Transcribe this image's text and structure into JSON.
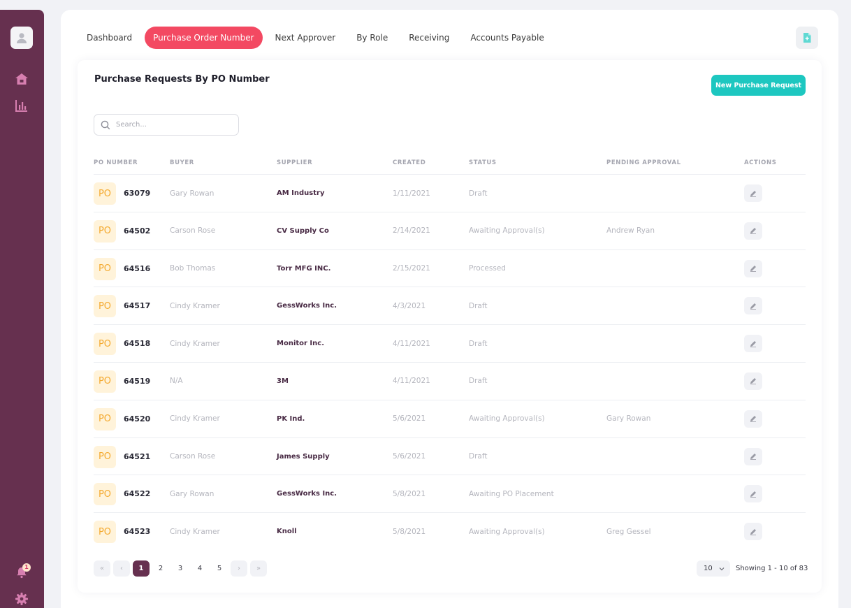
{
  "tabs": [
    {
      "label": "Dashboard",
      "active": false
    },
    {
      "label": "Purchase Order Number",
      "active": true
    },
    {
      "label": "Next Approver",
      "active": false
    },
    {
      "label": "By Role",
      "active": false
    },
    {
      "label": "Receiving",
      "active": false
    },
    {
      "label": "Accounts Payable",
      "active": false
    }
  ],
  "card": {
    "title": "Purchase Requests By PO Number",
    "new_button_label": "New Purchase Request"
  },
  "search": {
    "placeholder": "Search..."
  },
  "table": {
    "columns": [
      "PO NUMBER",
      "BUYER",
      "SUPPLIER",
      "CREATED",
      "STATUS",
      "PENDING APPROVAL",
      "ACTIONS"
    ],
    "badge_text": "PO",
    "rows": [
      {
        "po": "63079",
        "buyer": "Gary Rowan",
        "supplier": "AM Industry",
        "created": "1/11/2021",
        "status": "Draft",
        "pending": ""
      },
      {
        "po": "64502",
        "buyer": "Carson Rose",
        "supplier": "CV Supply Co",
        "created": "2/14/2021",
        "status": "Awaiting Approval(s)",
        "pending": "Andrew Ryan"
      },
      {
        "po": "64516",
        "buyer": "Bob Thomas",
        "supplier": "Torr MFG INC.",
        "created": "2/15/2021",
        "status": "Processed",
        "pending": ""
      },
      {
        "po": "64517",
        "buyer": "Cindy Kramer",
        "supplier": "GessWorks Inc.",
        "created": "4/3/2021",
        "status": "Draft",
        "pending": ""
      },
      {
        "po": "64518",
        "buyer": "Cindy Kramer",
        "supplier": "Monitor Inc.",
        "created": "4/11/2021",
        "status": "Draft",
        "pending": ""
      },
      {
        "po": "64519",
        "buyer": "N/A",
        "supplier": "3M",
        "created": "4/11/2021",
        "status": "Draft",
        "pending": ""
      },
      {
        "po": "64520",
        "buyer": "Cindy Kramer",
        "supplier": "PK Ind.",
        "created": "5/6/2021",
        "status": "Awaiting Approval(s)",
        "pending": "Gary Rowan"
      },
      {
        "po": "64521",
        "buyer": "Carson Rose",
        "supplier": "James Supply",
        "created": "5/6/2021",
        "status": "Draft",
        "pending": ""
      },
      {
        "po": "64522",
        "buyer": "Gary Rowan",
        "supplier": "GessWorks Inc.",
        "created": "5/8/2021",
        "status": "Awaiting PO Placement",
        "pending": ""
      },
      {
        "po": "64523",
        "buyer": "Cindy Kramer",
        "supplier": "Knoll",
        "created": "5/8/2021",
        "status": "Awaiting Approval(s)",
        "pending": "Greg Gessel"
      }
    ]
  },
  "pagination": {
    "first": "«",
    "prev": "‹",
    "next": "›",
    "last": "»",
    "pages": [
      "1",
      "2",
      "3",
      "4",
      "5"
    ],
    "current": "1",
    "page_size": "10",
    "showing": "Showing 1 - 10 of 83"
  },
  "sidebar": {
    "notification_count": "1"
  },
  "colors": {
    "sidebar": "#66304f",
    "active_tab": "#f34962",
    "primary_button": "#1dc7c0",
    "po_badge_bg": "#fff3da",
    "po_badge_text": "#f4a92e"
  },
  "icons": {
    "sidebar": [
      "user-avatar-icon",
      "home-icon",
      "bar-chart-icon",
      "bell-icon",
      "gear-icon"
    ],
    "search": "search-icon",
    "edit": "pencil-icon",
    "top_action": "add-document-icon"
  }
}
